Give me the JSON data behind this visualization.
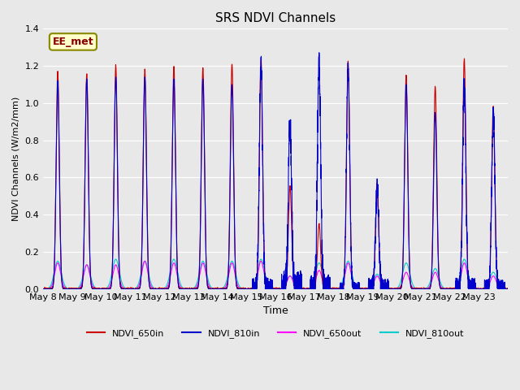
{
  "title": "SRS NDVI Channels",
  "ylabel": "NDVI Channels (W/m2/mm)",
  "xlabel": "Time",
  "annotation": "EE_met",
  "ylim": [
    0.0,
    1.4
  ],
  "colors": {
    "NDVI_650in": "#cc0000",
    "NDVI_810in": "#0000cc",
    "NDVI_650out": "#ff00ff",
    "NDVI_810out": "#00cccc"
  },
  "legend_labels": [
    "NDVI_650in",
    "NDVI_810in",
    "NDVI_650out",
    "NDVI_810out"
  ],
  "xtick_labels": [
    "May 8",
    "May 9",
    "May 10",
    "May 11",
    "May 12",
    "May 13",
    "May 14",
    "May 15",
    "May 16",
    "May 17",
    "May 18",
    "May 19",
    "May 20",
    "May 21",
    "May 22",
    "May 23"
  ],
  "background_color": "#e8e8e8",
  "grid_color": "#ffffff",
  "fig_bg": "#e8e8e8",
  "peaks_650in": [
    1.17,
    1.16,
    1.2,
    1.18,
    1.2,
    1.19,
    1.21,
    1.23,
    0.55,
    0.35,
    1.22,
    0.57,
    1.15,
    1.09,
    1.24,
    0.98
  ],
  "peaks_810in": [
    1.12,
    1.13,
    1.14,
    1.14,
    1.13,
    1.13,
    1.1,
    1.22,
    0.9,
    1.2,
    1.2,
    0.55,
    1.1,
    0.95,
    1.1,
    0.95
  ],
  "peaks_650out": [
    0.14,
    0.13,
    0.13,
    0.15,
    0.14,
    0.14,
    0.14,
    0.15,
    0.07,
    0.1,
    0.14,
    0.07,
    0.09,
    0.09,
    0.14,
    0.07
  ],
  "peaks_810out": [
    0.15,
    0.13,
    0.16,
    0.15,
    0.16,
    0.15,
    0.15,
    0.16,
    0.07,
    0.14,
    0.15,
    0.08,
    0.14,
    0.11,
    0.16,
    0.09
  ],
  "n_days": 16,
  "steps_per_day": 288
}
